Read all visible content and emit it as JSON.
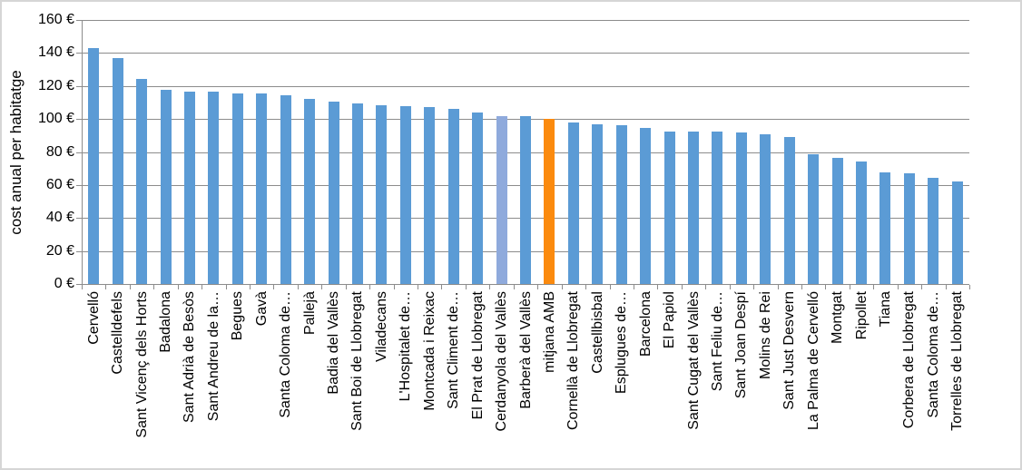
{
  "figure": {
    "background": "#FFFFFF",
    "border_color": "#D6D6D6"
  },
  "chart_data": {
    "type": "bar",
    "title": "",
    "xlabel": "",
    "ylabel": "cost anual per habitatge",
    "ylim": [
      0,
      160
    ],
    "ytick_step": 20,
    "ytick_labels": [
      "0 €",
      "20 €",
      "40 €",
      "60 €",
      "80 €",
      "100 €",
      "120 €",
      "140 €",
      "160 €"
    ],
    "grid": true,
    "legend": false,
    "gridline_color": "#8C8C8C",
    "axis_color": "#8C8C8C",
    "text_color": "#000000",
    "bar_color_default": "#5B9BD5",
    "highlighted_bars": [
      {
        "index": 17,
        "category": "Cerdanyola del Vallès",
        "color": "#8FAADC"
      },
      {
        "index": 19,
        "category": "mitjana AMB",
        "color": "#FB8A0E"
      }
    ],
    "categories": [
      "Cervelló",
      "Castelldefels",
      "Sant Vicenç dels Horts",
      "Badalona",
      "Sant Adrià de Besòs",
      "Sant Andreu de la…",
      "Begues",
      "Gavà",
      "Santa Coloma de…",
      "Pallejà",
      "Badia del Vallès",
      "Sant Boi de Llobregat",
      "Viladecans",
      "L'Hospitalet de…",
      "Montcada i Reixac",
      "Sant Climent de…",
      "El Prat de Llobregat",
      "Cerdanyola del Vallès",
      "Barberà del Vallès",
      "mitjana AMB",
      "Cornellà de Llobregat",
      "Castellbisbal",
      "Esplugues de…",
      "Barcelona",
      "El Papiol",
      "Sant Cugat del Vallès",
      "Sant Feliu de…",
      "Sant Joan Despí",
      "Molins de Rei",
      "Sant Just Desvern",
      "La Palma de Cervelló",
      "Montgat",
      "Ripollet",
      "Tiana",
      "Corbera de Llobregat",
      "Santa Coloma de…",
      "Torrelles de Llobregat"
    ],
    "values": [
      143,
      137,
      124,
      117.5,
      116.5,
      116.5,
      115.5,
      115.5,
      114.5,
      112,
      110.5,
      109.5,
      108.5,
      108,
      107,
      106,
      104,
      101.5,
      101.5,
      100,
      98,
      97,
      96,
      94.5,
      92.5,
      92.5,
      92.5,
      92,
      90.5,
      89,
      78.5,
      76.5,
      74,
      67.5,
      67,
      64.5,
      62
    ]
  }
}
